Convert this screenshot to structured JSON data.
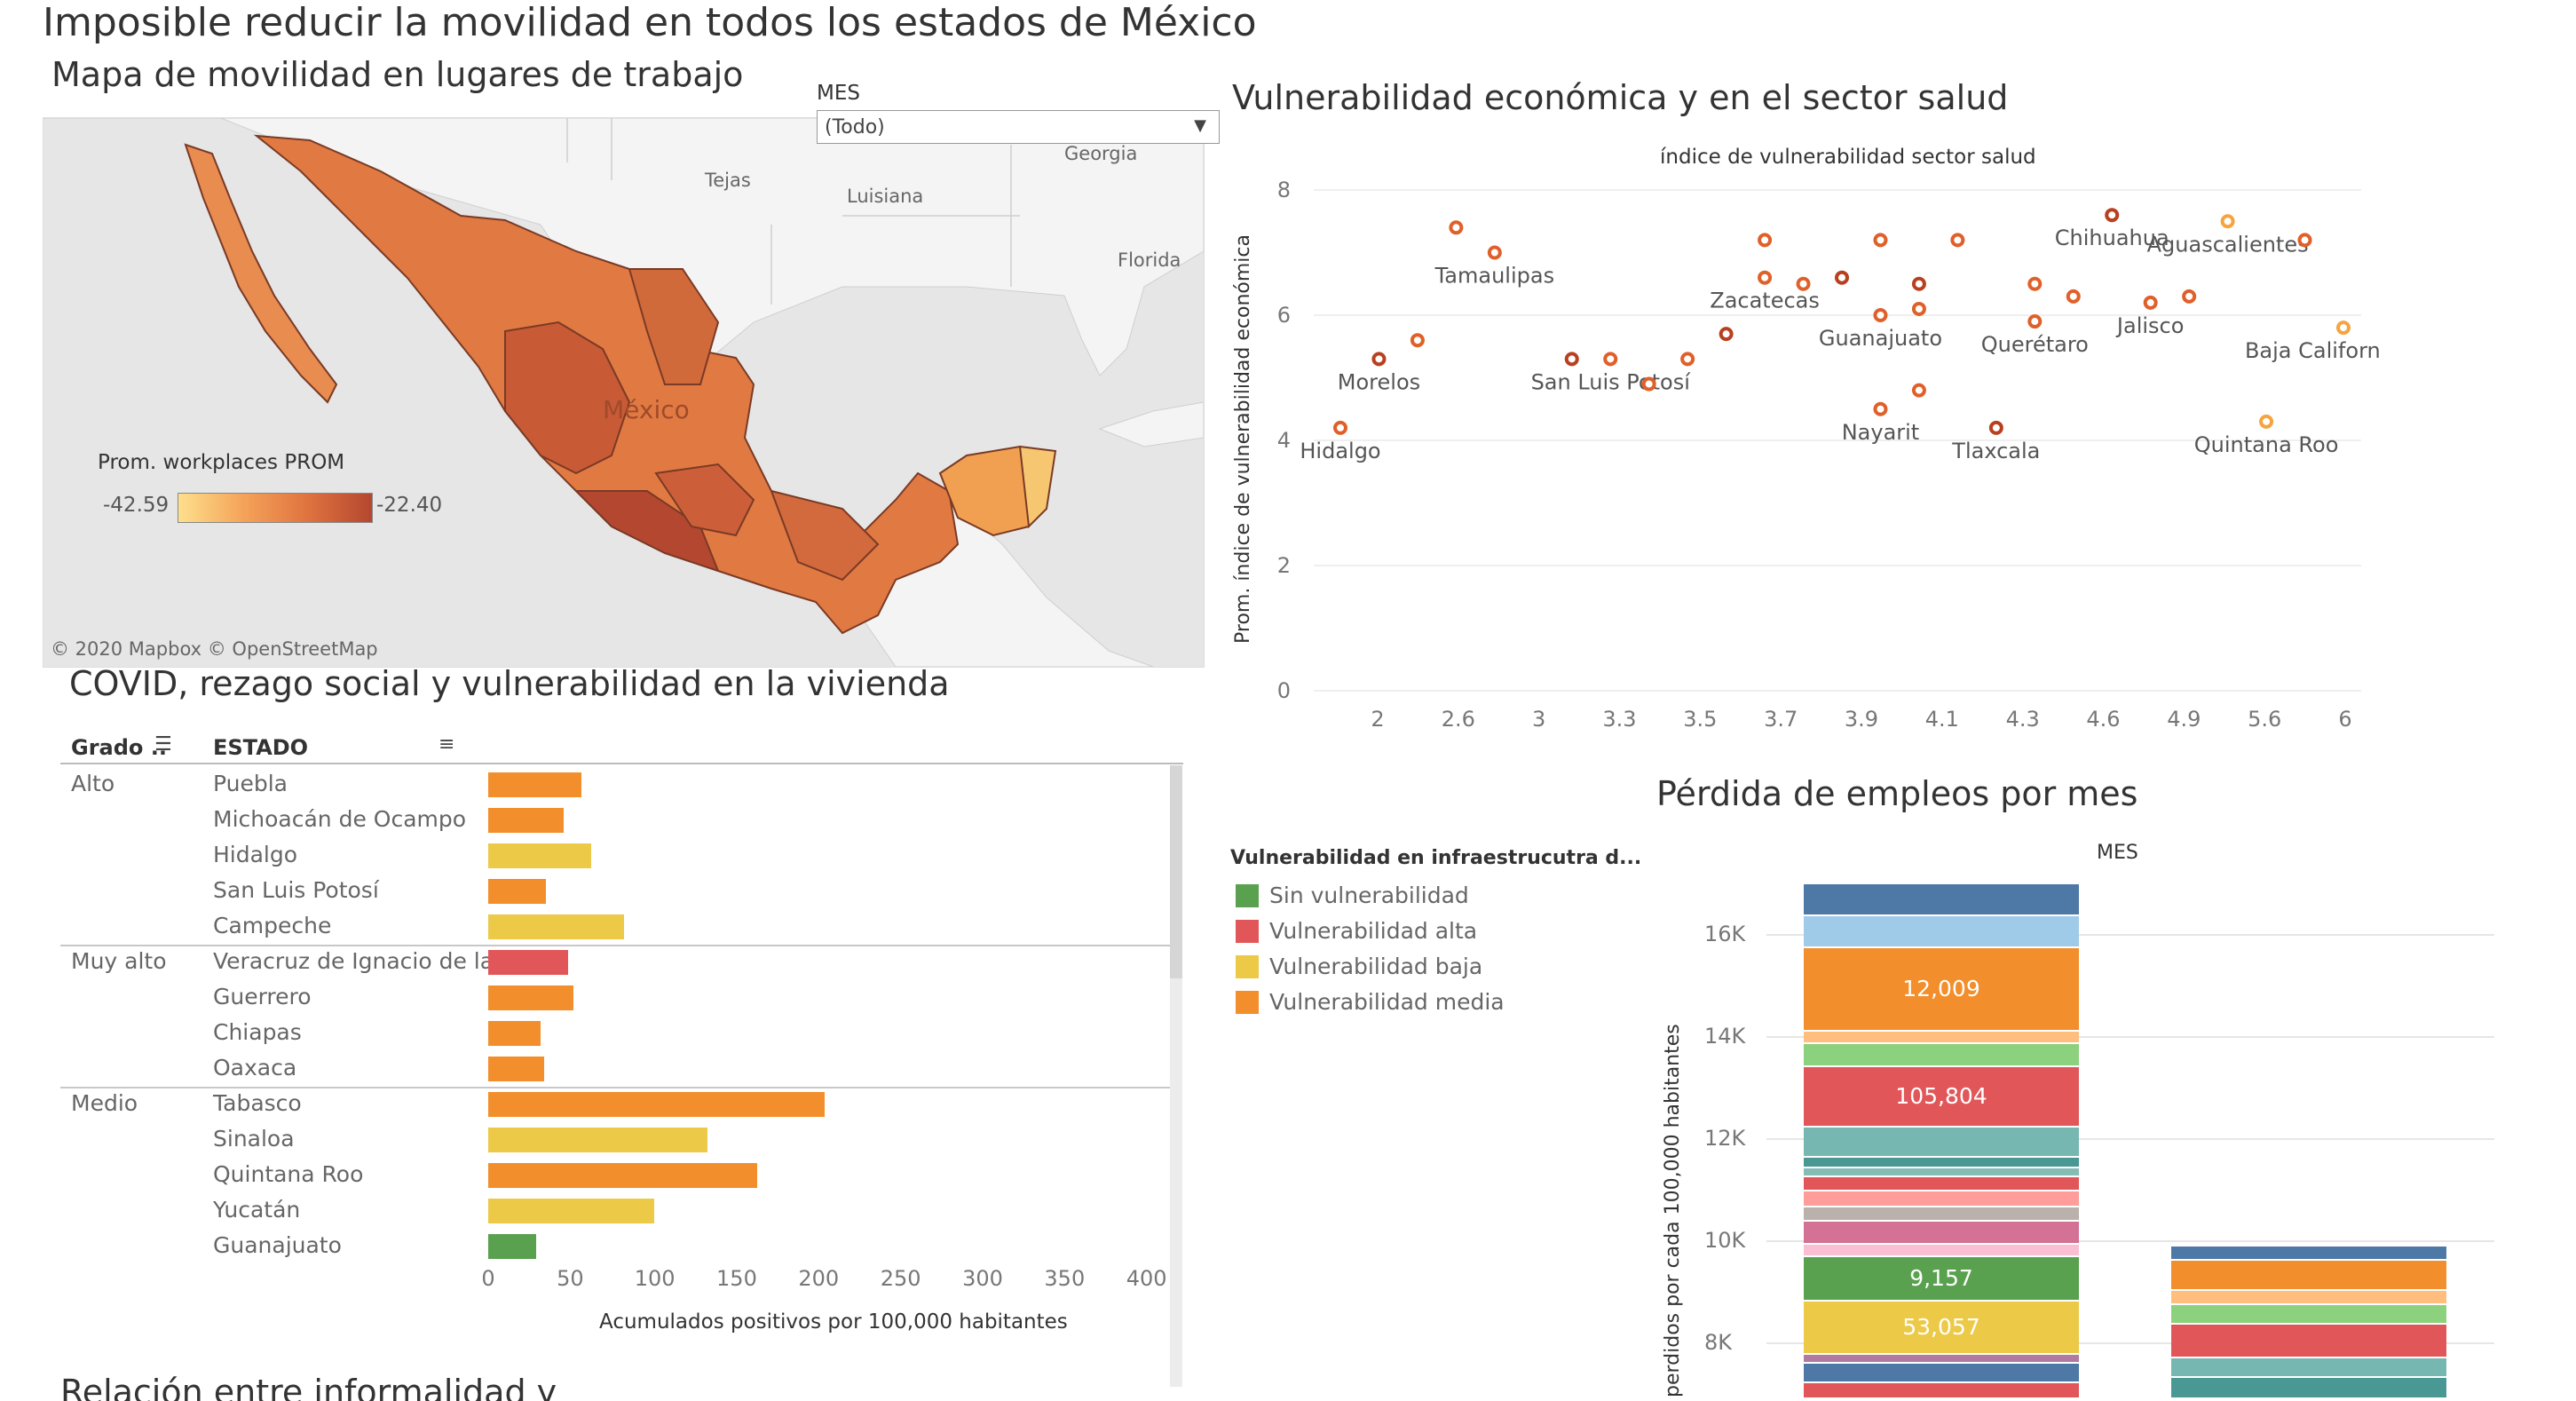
{
  "dashboard_title": "Imposible reducir la movilidad en todos los estados de México",
  "map": {
    "title": "Mapa de movilidad en lugares de trabajo",
    "filter_label": "MES",
    "filter_value": "(Todo)",
    "legend_title": "Prom. workplaces PROM",
    "legend_min": "-42.59",
    "legend_max": "-22.40",
    "place_labels": [
      "Tejas",
      "Luisiana",
      "Georgia",
      "Florida",
      "México"
    ],
    "attribution": "© 2020 Mapbox  © OpenStreetMap",
    "colors": {
      "low": "#fde08c",
      "high": "#b4472f"
    }
  },
  "scatter": {
    "title": "Vulnerabilidad económica y en el sector salud",
    "chart_data": {
      "type": "scatter",
      "title": "índice de vulnerabilidad sector salud",
      "ylabel": "Prom. índice de vulnerabilidad económica",
      "xticks": [
        "2",
        "2.6",
        "3",
        "3.3",
        "3.5",
        "3.7",
        "3.9",
        "4.1",
        "4.3",
        "4.6",
        "4.9",
        "5.6",
        "6"
      ],
      "yticks": [
        "0",
        "2",
        "4",
        "6",
        "8"
      ],
      "ylim": [
        0,
        8
      ],
      "points": [
        {
          "x": 1.8,
          "y": 4.2,
          "label": "Hidalgo"
        },
        {
          "x": 2.0,
          "y": 5.3,
          "label": "Morelos"
        },
        {
          "x": 2.2,
          "y": 5.6,
          "label": ""
        },
        {
          "x": 2.4,
          "y": 7.4,
          "label": ""
        },
        {
          "x": 2.6,
          "y": 7.0,
          "label": "Tamaulipas"
        },
        {
          "x": 3.0,
          "y": 5.3,
          "label": ""
        },
        {
          "x": 3.2,
          "y": 5.3,
          "label": "San Luis Potosí"
        },
        {
          "x": 3.4,
          "y": 4.9,
          "label": ""
        },
        {
          "x": 3.6,
          "y": 5.3,
          "label": ""
        },
        {
          "x": 3.8,
          "y": 5.7,
          "label": ""
        },
        {
          "x": 4.0,
          "y": 7.2,
          "label": ""
        },
        {
          "x": 4.0,
          "y": 6.6,
          "label": "Zacatecas"
        },
        {
          "x": 4.2,
          "y": 6.5,
          "label": ""
        },
        {
          "x": 4.4,
          "y": 6.6,
          "label": ""
        },
        {
          "x": 4.6,
          "y": 7.2,
          "label": ""
        },
        {
          "x": 4.6,
          "y": 6.0,
          "label": "Guanajuato"
        },
        {
          "x": 4.6,
          "y": 4.5,
          "label": "Nayarit"
        },
        {
          "x": 4.8,
          "y": 6.5,
          "label": ""
        },
        {
          "x": 4.8,
          "y": 6.1,
          "label": ""
        },
        {
          "x": 4.8,
          "y": 4.8,
          "label": ""
        },
        {
          "x": 5.0,
          "y": 7.2,
          "label": ""
        },
        {
          "x": 5.2,
          "y": 4.2,
          "label": "Tlaxcala"
        },
        {
          "x": 5.4,
          "y": 6.5,
          "label": ""
        },
        {
          "x": 5.4,
          "y": 5.9,
          "label": "Querétaro"
        },
        {
          "x": 5.6,
          "y": 6.3,
          "label": ""
        },
        {
          "x": 5.8,
          "y": 7.6,
          "label": "Chihuahua"
        },
        {
          "x": 6.0,
          "y": 6.2,
          "label": "Jalisco"
        },
        {
          "x": 6.2,
          "y": 6.3,
          "label": ""
        },
        {
          "x": 6.4,
          "y": 7.5,
          "label": "Aguascalientes"
        },
        {
          "x": 6.6,
          "y": 4.3,
          "label": "Quintana Roo"
        },
        {
          "x": 6.8,
          "y": 7.2,
          "label": ""
        },
        {
          "x": 7.0,
          "y": 5.8,
          "label": "Baja California Sur"
        }
      ],
      "colors": {
        "dark": "#b8401f",
        "mid": "#e0602a",
        "light": "#f5a440"
      }
    }
  },
  "covid": {
    "title": "COVID, rezago social y vulnerabilidad en la vivienda",
    "col_grado": "Grado ..",
    "col_estado": "ESTADO",
    "xlabel": "Acumulados positivos por 100,000 habitantes",
    "xticks": [
      "0",
      "50",
      "100",
      "150",
      "200",
      "250",
      "300",
      "350",
      "400"
    ],
    "xlim": [
      0,
      400
    ],
    "groups": [
      {
        "grado": "Alto",
        "rows": [
          {
            "estado": "Puebla",
            "value": 57,
            "category": "media"
          },
          {
            "estado": "Michoacán de Ocampo",
            "value": 46,
            "category": "media"
          },
          {
            "estado": "Hidalgo",
            "value": 63,
            "category": "baja"
          },
          {
            "estado": "San Luis Potosí",
            "value": 35,
            "category": "media"
          },
          {
            "estado": "Campeche",
            "value": 83,
            "category": "baja"
          }
        ]
      },
      {
        "grado": "Muy alto",
        "rows": [
          {
            "estado": "Veracruz de Ignacio de la ..",
            "value": 49,
            "category": "alta"
          },
          {
            "estado": "Guerrero",
            "value": 52,
            "category": "media"
          },
          {
            "estado": "Chiapas",
            "value": 32,
            "category": "media"
          },
          {
            "estado": "Oaxaca",
            "value": 34,
            "category": "media"
          }
        ]
      },
      {
        "grado": "Medio",
        "rows": [
          {
            "estado": "Tabasco",
            "value": 205,
            "category": "media"
          },
          {
            "estado": "Sinaloa",
            "value": 134,
            "category": "baja"
          },
          {
            "estado": "Quintana Roo",
            "value": 164,
            "category": "media"
          },
          {
            "estado": "Yucatán",
            "value": 101,
            "category": "baja"
          },
          {
            "estado": "Guanajuato",
            "value": 29,
            "category": "sin"
          }
        ]
      }
    ]
  },
  "legend": {
    "title": "Vulnerabilidad en infraestrucutra d...",
    "items": [
      {
        "label": "Sin vulnerabilidad",
        "color": "#59a14f"
      },
      {
        "label": "Vulnerabilidad alta",
        "color": "#e15759"
      },
      {
        "label": "Vulnerabilidad baja",
        "color": "#edc948"
      },
      {
        "label": "Vulnerabilidad media",
        "color": "#f28e2b"
      }
    ]
  },
  "empleos": {
    "title": "Pérdida de empleos por mes",
    "col_header": "MES",
    "ylabel": "perdidos por cada 100,000 habitantes",
    "yticks": [
      "8K",
      "10K",
      "12K",
      "14K",
      "16K"
    ],
    "segment_labels": [
      "12,009",
      "105,804",
      "9,157",
      "53,057"
    ]
  }
}
